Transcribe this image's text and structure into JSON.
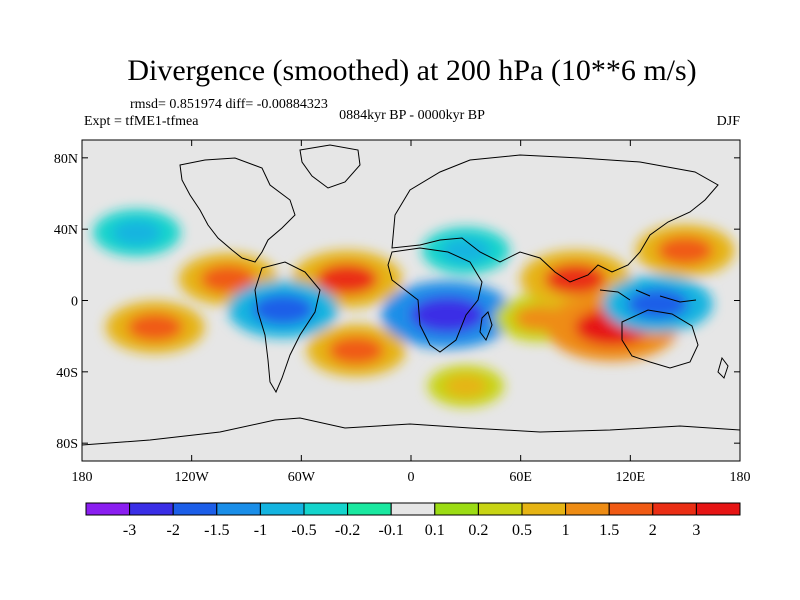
{
  "chart_data": {
    "type": "heatmap",
    "title": "Divergence (smoothed) at 200 hPa (10**6 m/s)",
    "stats_text": "rmsd= 0.851974 diff= -0.00884323",
    "experiment": "Expt = tfME1-tfmea",
    "period": "0884kyr BP - 0000kyr BP",
    "season": "DJF",
    "xlabel": "",
    "ylabel": "",
    "xlim": [
      -180,
      180
    ],
    "ylim": [
      -90,
      90
    ],
    "x_ticks": [
      {
        "value": -180,
        "label": "180"
      },
      {
        "value": -120,
        "label": "120W"
      },
      {
        "value": -60,
        "label": "60W"
      },
      {
        "value": 0,
        "label": "0"
      },
      {
        "value": 60,
        "label": "60E"
      },
      {
        "value": 120,
        "label": "120E"
      },
      {
        "value": 180,
        "label": "180"
      }
    ],
    "y_ticks": [
      {
        "value": 80,
        "label": "80N"
      },
      {
        "value": 40,
        "label": "40N"
      },
      {
        "value": 0,
        "label": "0"
      },
      {
        "value": -40,
        "label": "40S"
      },
      {
        "value": -80,
        "label": "80S"
      }
    ],
    "colorbar": {
      "levels": [
        "-3",
        "-2",
        "-1.5",
        "-1",
        "-0.5",
        "-0.2",
        "-0.1",
        "0.1",
        "0.2",
        "0.5",
        "1",
        "1.5",
        "2",
        "3"
      ],
      "colors": [
        "#8a1ef0",
        "#3a2ee6",
        "#1c5ee8",
        "#1a8ee8",
        "#14b4e0",
        "#14d4cc",
        "#1ae8a0",
        "#e6e6e6",
        "#9cdc14",
        "#c8d414",
        "#e6b414",
        "#ee8c14",
        "#f05a14",
        "#ea2e14",
        "#e61414"
      ]
    },
    "features": [
      {
        "name": "south-pacific-positive-band",
        "lon": -140,
        "lat": -15,
        "value": 1.5
      },
      {
        "name": "east-pacific-positive",
        "lon": -100,
        "lat": 12,
        "value": 1.5
      },
      {
        "name": "north-atlantic-positive",
        "lon": -35,
        "lat": 12,
        "value": 2
      },
      {
        "name": "amazon-negative",
        "lon": -70,
        "lat": -5,
        "value": -2
      },
      {
        "name": "south-atlantic-positive",
        "lon": -30,
        "lat": -28,
        "value": 1.5
      },
      {
        "name": "central-africa-negative",
        "lon": 20,
        "lat": -8,
        "value": -3
      },
      {
        "name": "indian-ocean-positive",
        "lon": 70,
        "lat": -10,
        "value": 1
      },
      {
        "name": "south-asia-positive",
        "lon": 90,
        "lat": 12,
        "value": 2
      },
      {
        "name": "maritime-continent-positive",
        "lon": 110,
        "lat": -15,
        "value": 3
      },
      {
        "name": "west-pacific-negative",
        "lon": 135,
        "lat": -2,
        "value": -2
      },
      {
        "name": "north-pacific-positive",
        "lon": 150,
        "lat": 28,
        "value": 1.5
      },
      {
        "name": "north-pacific-negative",
        "lon": -150,
        "lat": 38,
        "value": -1
      },
      {
        "name": "eurasia-negative-belt",
        "lon": 30,
        "lat": 28,
        "value": -1
      },
      {
        "name": "southern-ocean-positive",
        "lon": 30,
        "lat": -48,
        "value": 0.5
      }
    ]
  }
}
